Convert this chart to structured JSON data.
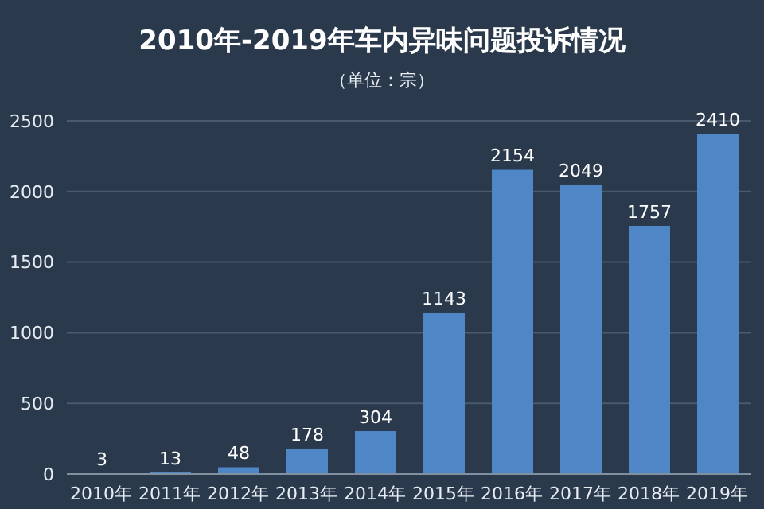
{
  "chart_data": {
    "type": "bar",
    "title": "2010年-2019年车内异味问题投诉情况",
    "subtitle": "（单位：宗）",
    "categories": [
      "2010年",
      "2011年",
      "2012年",
      "2013年",
      "2014年",
      "2015年",
      "2016年",
      "2017年",
      "2018年",
      "2019年"
    ],
    "values": [
      3,
      13,
      48,
      178,
      304,
      1143,
      2154,
      2049,
      1757,
      2410
    ],
    "color": "#4f86c6",
    "ylim": [
      0,
      2500
    ],
    "yticks": [
      0,
      500,
      1000,
      1500,
      2000,
      2500
    ],
    "grid": "y",
    "data_labels": true
  }
}
